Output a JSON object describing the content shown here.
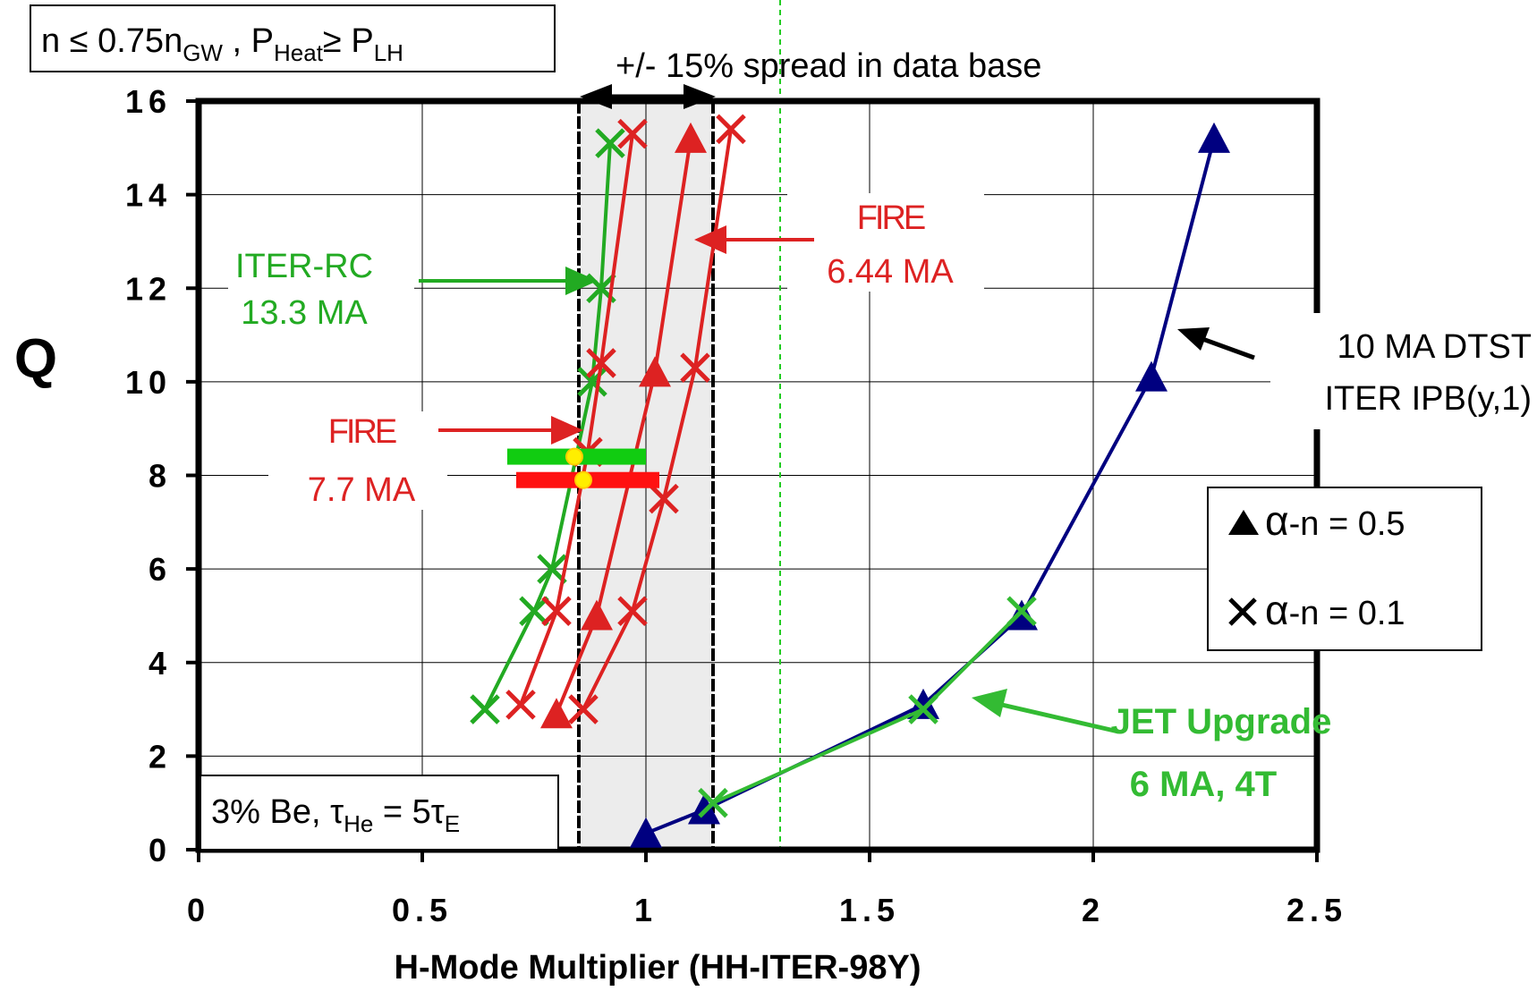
{
  "chart_data": {
    "type": "line",
    "xlabel": "H-Mode Multiplier (HH-ITER-98Y)",
    "ylabel": "Q",
    "xlim": [
      0,
      2.5
    ],
    "ylim": [
      0,
      16
    ],
    "x_ticks": [
      "0",
      "0.5",
      "1",
      "1.5",
      "2",
      "2.5"
    ],
    "y_ticks": [
      "0",
      "2",
      "4",
      "6",
      "8",
      "10",
      "12",
      "14",
      "16"
    ],
    "grid": true,
    "legend_placement": "right",
    "legend": [
      {
        "marker": "triangle",
        "label": "α-n = 0.5"
      },
      {
        "marker": "cross",
        "label": "α-n = 0.1"
      }
    ],
    "shaded_band": {
      "from": 0.85,
      "to": 1.15,
      "label": "+/- 15% spread in data base"
    },
    "reference_line_x": 1.3,
    "series": [
      {
        "color": "#22aa22",
        "marker": "cross",
        "x": [
          0.64,
          0.75,
          0.79,
          0.88,
          0.9,
          0.92
        ],
        "y": [
          3.0,
          5.1,
          6.0,
          10.0,
          12.0,
          15.1
        ]
      },
      {
        "color": "#dd2222",
        "marker": "cross",
        "x": [
          0.72,
          0.8,
          0.87,
          0.9,
          0.97
        ],
        "y": [
          3.1,
          5.1,
          8.5,
          10.4,
          15.3
        ]
      },
      {
        "color": "#dd2222",
        "marker": "triangle",
        "x": [
          0.8,
          0.89,
          1.02,
          1.1
        ],
        "y": [
          2.9,
          5.0,
          10.2,
          15.2
        ]
      },
      {
        "color": "#dd2222",
        "marker": "cross",
        "x": [
          0.86,
          0.97,
          1.04,
          1.11,
          1.19
        ],
        "y": [
          3.0,
          5.1,
          7.5,
          10.3,
          15.4
        ]
      },
      {
        "color": "#000080",
        "marker": "triangle",
        "x": [
          1.0,
          1.13,
          1.62,
          1.84,
          2.13,
          2.27
        ],
        "y": [
          0.35,
          0.85,
          3.1,
          5.0,
          10.1,
          15.2
        ]
      },
      {
        "color": "#33bb33",
        "marker": "cross",
        "x": [
          1.15,
          1.62,
          1.84
        ],
        "y": [
          1.0,
          3.0,
          5.1
        ]
      }
    ],
    "operating_bars": [
      {
        "color": "#11cc11",
        "x_from": 0.69,
        "x_to": 1.0,
        "y": 8.4,
        "point_x": 0.84
      },
      {
        "color": "#ff1111",
        "x_from": 0.71,
        "x_to": 1.03,
        "y": 7.9,
        "point_x": 0.86
      }
    ],
    "annotations": {
      "top_left_box": {
        "n": "n  ≤  0.75n",
        "n_sub": "GW",
        "sep": " ,  P",
        "p1_sub": "Heat",
        "ge": "≥ P",
        "p2_sub": "LH"
      },
      "spread": "+/-  15% spread in data base",
      "iter_rc": {
        "line1": "ITER-RC",
        "line2": "13.3  MA"
      },
      "fire_644": {
        "line1": "FIRE",
        "line2": "6.44  MA"
      },
      "fire_77": {
        "line1": "FIRE",
        "line2": "7.7  MA"
      },
      "dtst": {
        "line1": "10 MA DTST",
        "line2": "ITER IPB(y,1)"
      },
      "jet": {
        "line1": "JET Upgrade",
        "line2": "6 MA,  4T"
      },
      "be_box": {
        "pre": "3% Be,  τ",
        "sub1": "He",
        "mid": " = 5τ",
        "sub2": "E"
      },
      "legend_alpha": "α",
      "legend_tri_rest": "-n  =  0.5",
      "legend_x_rest": "-n  =  0.1"
    },
    "colors": {
      "iter_green": "#22aa22",
      "fire_red": "#dd2222",
      "dtst_navy": "#000080",
      "jet_green": "#33bb33",
      "band_fill": "#ececec",
      "marker_yellow": "#ffee00"
    }
  }
}
